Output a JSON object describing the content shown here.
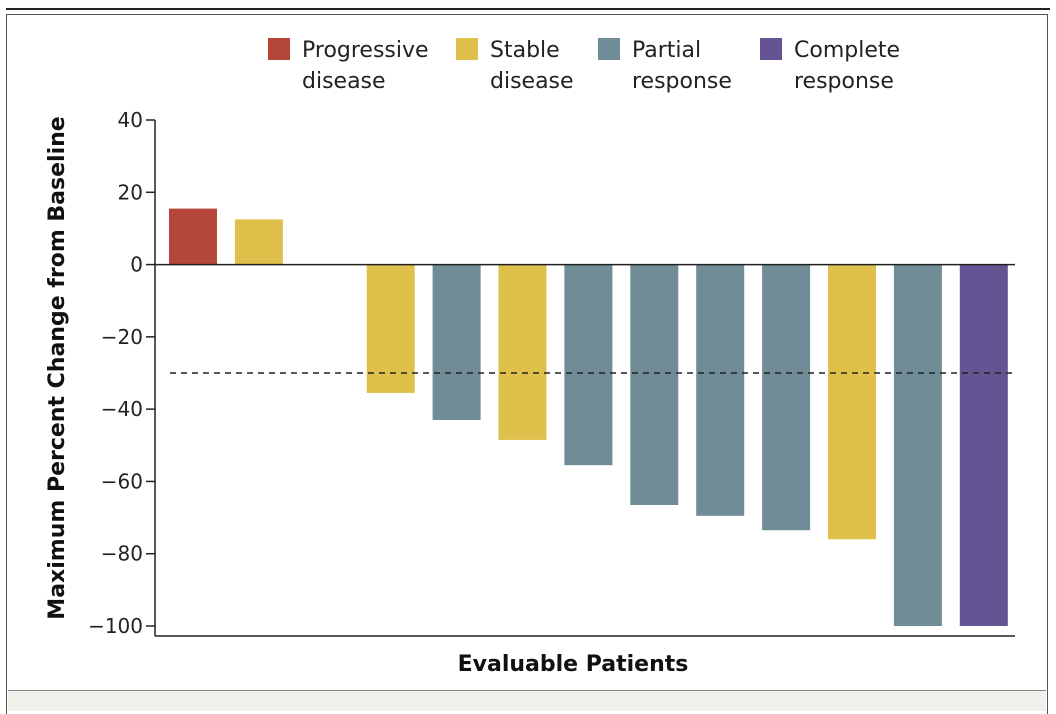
{
  "chart_data": {
    "type": "bar",
    "xlabel": "Evaluable Patients",
    "ylabel": "Maximum Percent Change from Baseline",
    "ylim": [
      -100,
      40
    ],
    "yticks": [
      40,
      20,
      0,
      -20,
      -40,
      -60,
      -80,
      -100
    ],
    "ytick_labels": [
      "40",
      "20",
      "0",
      "−20",
      "−40",
      "−60",
      "−80",
      "−100"
    ],
    "reference_line": {
      "y": -30,
      "style": "dashed"
    },
    "legend_placement": "top",
    "categories_legend": [
      {
        "key": "progressive",
        "line1": "Progressive",
        "line2": "disease",
        "color": "#b5473a"
      },
      {
        "key": "stable",
        "line1": "Stable",
        "line2": "disease",
        "color": "#dfc04a"
      },
      {
        "key": "partial",
        "line1": "Partial",
        "line2": "response",
        "color": "#6f8c97"
      },
      {
        "key": "complete",
        "line1": "Complete",
        "line2": "response",
        "color": "#645493"
      }
    ],
    "bars": [
      {
        "value": 15.5,
        "category": "progressive"
      },
      {
        "value": 12.5,
        "category": "stable"
      },
      {
        "value": 0,
        "category": "stable"
      },
      {
        "value": -35.5,
        "category": "stable"
      },
      {
        "value": -43,
        "category": "partial"
      },
      {
        "value": -48.5,
        "category": "stable"
      },
      {
        "value": -55.5,
        "category": "partial"
      },
      {
        "value": -66.5,
        "category": "partial"
      },
      {
        "value": -69.5,
        "category": "partial"
      },
      {
        "value": -73.5,
        "category": "partial"
      },
      {
        "value": -76,
        "category": "stable"
      },
      {
        "value": -100,
        "category": "partial"
      },
      {
        "value": -100,
        "category": "complete"
      }
    ]
  }
}
